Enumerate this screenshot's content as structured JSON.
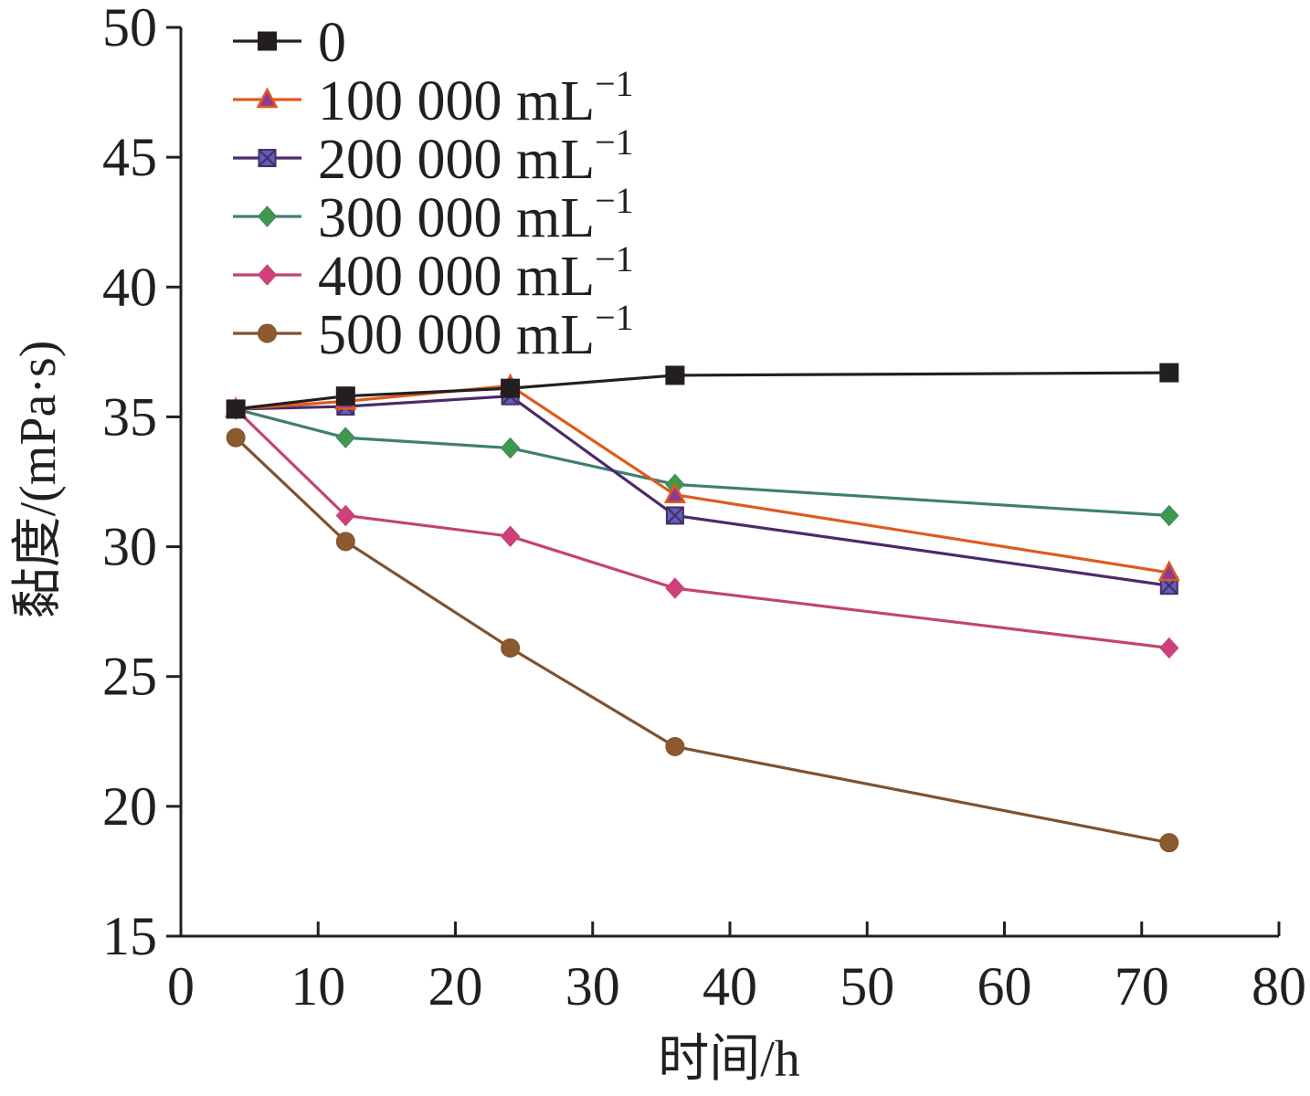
{
  "chart_data": {
    "type": "line",
    "xlabel": "时间/h",
    "ylabel": "黏度/(mPa·s)",
    "xlim": [
      0,
      80
    ],
    "ylim": [
      15,
      50
    ],
    "xticks": [
      0,
      10,
      20,
      30,
      40,
      50,
      60,
      70,
      80
    ],
    "yticks": [
      15,
      20,
      25,
      30,
      35,
      40,
      45,
      50
    ],
    "x": [
      4,
      12,
      24,
      36,
      72
    ],
    "grid": false,
    "legend_position": "top-left",
    "series": [
      {
        "name": "0",
        "unit_sup": "",
        "values": [
          35.3,
          35.8,
          36.1,
          36.6,
          36.7
        ],
        "color": "#231f20",
        "marker": "square",
        "marker_fill": "#231f20"
      },
      {
        "name": "100 000 mL",
        "unit_sup": "−1",
        "values": [
          35.3,
          35.6,
          36.2,
          32.0,
          29.0
        ],
        "color": "#e05a1e",
        "marker": "triangle",
        "marker_fill": "#8e3a8e"
      },
      {
        "name": "200 000 mL",
        "unit_sup": "−1",
        "values": [
          35.3,
          35.4,
          35.8,
          31.2,
          28.5
        ],
        "color": "#4b2a6b",
        "marker": "x-square",
        "marker_fill": "#5a63b5"
      },
      {
        "name": "300 000 mL",
        "unit_sup": "−1",
        "values": [
          35.3,
          34.2,
          33.8,
          32.4,
          31.2
        ],
        "color": "#3f7f73",
        "marker": "diamond",
        "marker_fill": "#3e9a4a"
      },
      {
        "name": "400 000 mL",
        "unit_sup": "−1",
        "values": [
          35.3,
          31.2,
          30.4,
          28.4,
          26.1
        ],
        "color": "#c2456e",
        "marker": "diamond",
        "marker_fill": "#cf3f7a"
      },
      {
        "name": "500 000 mL",
        "unit_sup": "−1",
        "values": [
          34.2,
          30.2,
          26.1,
          22.3,
          18.6
        ],
        "color": "#7f5230",
        "marker": "circle",
        "marker_fill": "#8b5a2e"
      }
    ]
  }
}
